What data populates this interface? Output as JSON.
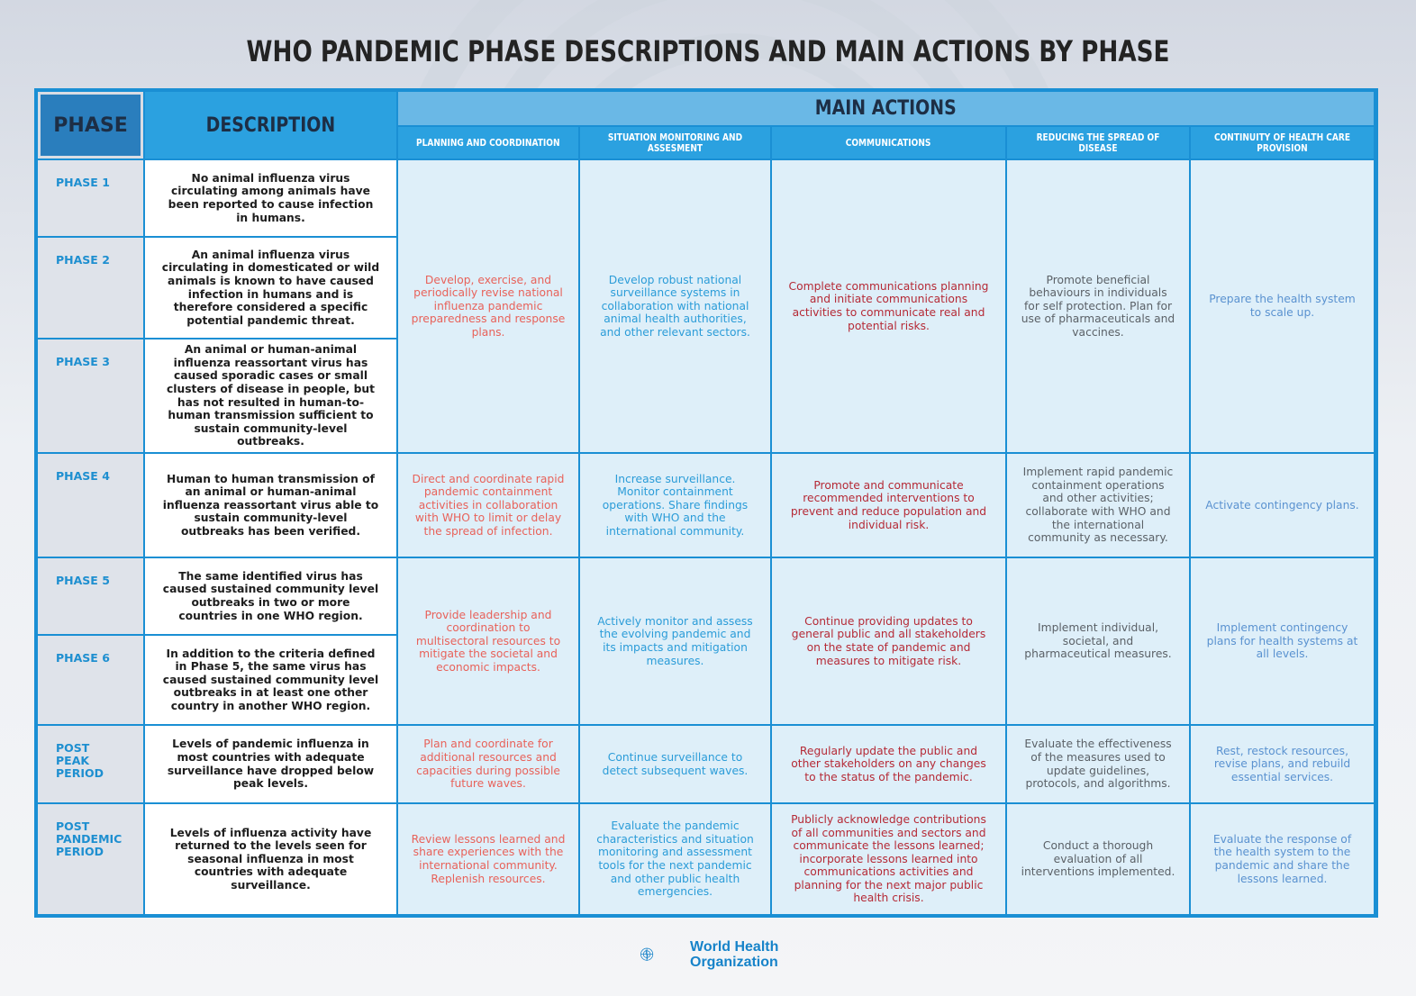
{
  "title": "WHO PANDEMIC PHASE DESCRIPTIONS AND MAIN ACTIONS BY PHASE",
  "headers": {
    "phase": "PHASE",
    "description": "DESCRIPTION",
    "main_actions": "MAIN ACTIONS",
    "columns": [
      "PLANNING AND COORDINATION",
      "SITUATION MONITORING AND ASSESMENT",
      "COMMUNICATIONS",
      "REDUCING THE SPREAD OF DISEASE",
      "CONTINUITY OF HEALTH CARE PROVISION"
    ]
  },
  "phases": [
    {
      "label": "PHASE 1",
      "description": "No animal influenza virus circulating among animals have been reported to cause infection in humans."
    },
    {
      "label": "PHASE 2",
      "description": "An animal influenza virus circulating in domesticated or wild animals is known to have caused infection in humans and is therefore considered a specific potential pandemic threat."
    },
    {
      "label": "PHASE 3",
      "description": "An animal or human-animal influenza reassortant virus has caused sporadic cases or small clusters of disease in people, but has not resulted in human-to-human transmission sufficient to sustain community-level outbreaks."
    },
    {
      "label": "PHASE 4",
      "description": "Human to human transmission of an animal or human-animal influenza reassortant virus able to sustain community-level outbreaks has been verified."
    },
    {
      "label": "PHASE 5",
      "description": "The same identified virus has caused sustained community level outbreaks in two or more countries in one WHO region."
    },
    {
      "label": "PHASE 6",
      "description": "In addition to the criteria defined in Phase 5, the same virus has caused sustained community level outbreaks in at least one other country in another WHO region."
    },
    {
      "label": "POST PEAK PERIOD",
      "description": "Levels of pandemic influenza in most countries with adequate surveillance have dropped below peak levels."
    },
    {
      "label": "POST PANDEMIC PERIOD",
      "description": "Levels of influenza activity have returned to the levels seen for seasonal influenza in most countries with adequate surveillance."
    }
  ],
  "actions": {
    "phases_1_3": [
      "Develop, exercise, and periodically revise national influenza pandemic preparedness and response plans.",
      "Develop robust national surveillance systems in collaboration with national animal health authorities, and other relevant sectors.",
      "Complete communications planning and initiate communications activities to communicate real and potential risks.",
      "Promote beneficial behaviours in individuals for self protection. Plan for use of pharmaceuticals and vaccines.",
      "Prepare the health system to scale up."
    ],
    "phase_4": [
      "Direct and coordinate rapid pandemic containment activities in collaboration with WHO to limit or delay the spread of infection.",
      "Increase surveillance. Monitor containment operations. Share findings with WHO and the international community.",
      "Promote and communicate recommended interventions to prevent and reduce population and individual risk.",
      "Implement rapid pandemic containment operations and other activities; collaborate with WHO and the international community as necessary.",
      "Activate contingency plans."
    ],
    "phases_5_6": [
      "Provide leadership and coordination to multisectoral resources to mitigate the societal and economic impacts.",
      "Actively monitor and assess the evolving pandemic and its impacts and mitigation measures.",
      "Continue providing updates to general public and all stakeholders on the state of pandemic and measures to mitigate risk.",
      "Implement individual, societal, and pharmaceutical measures.",
      "Implement contingency plans for health systems at all levels."
    ],
    "post_peak": [
      "Plan and coordinate for additional resources and capacities during possible future waves.",
      "Continue surveillance to detect subsequent waves.",
      "Regularly update the public and other stakeholders on any changes to the status of the pandemic.",
      "Evaluate the effectiveness of the measures used to update guidelines, protocols, and algorithms.",
      "Rest, restock resources, revise plans, and rebuild essential services."
    ],
    "post_pandemic": [
      "Review lessons learned and share experiences with the international community. Replenish resources.",
      "Evaluate the pandemic characteristics and situation monitoring and assessment tools for the next pandemic and other public health emergencies.",
      "Publicly acknowledge contributions of all communities and sectors and communicate the lessons learned; incorporate lessons learned into communications activities and planning for the next major public health crisis.",
      "Conduct a thorough evaluation of all interventions implemented.",
      "Evaluate the response of the health system to the pandemic and share the lessons learned."
    ]
  },
  "logo_text": [
    "World Health",
    "Organization"
  ],
  "colors": {
    "frame": "#1a8fd4",
    "header_dark": "#2a7ebd",
    "header_main": "#6ab8e6",
    "planning": "#e8625a",
    "monitoring": "#2b9cd8",
    "communications": "#b52a36",
    "spread": "#5b6167",
    "continuity": "#5a92d0"
  }
}
